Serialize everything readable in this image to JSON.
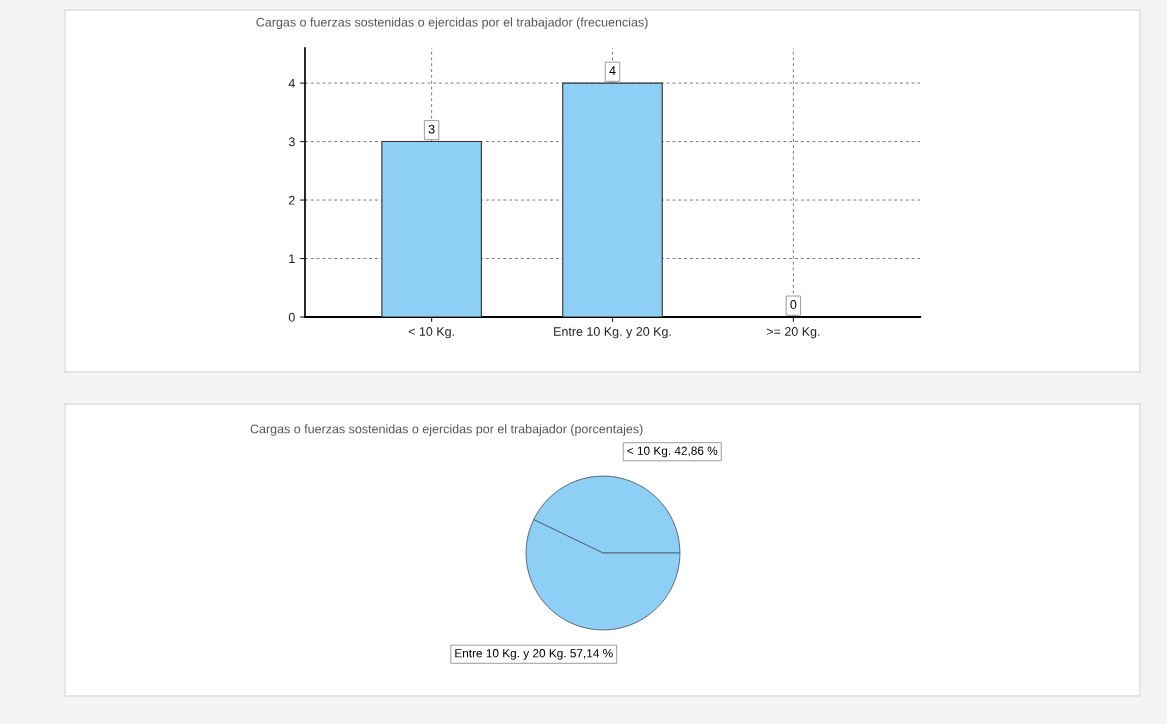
{
  "chart_data": [
    {
      "type": "bar",
      "title": "Cargas o fuerzas sostenidas o ejercidas por el trabajador (frecuencias)",
      "categories": [
        "< 10 Kg.",
        "Entre 10 Kg. y 20 Kg.",
        ">= 20 Kg."
      ],
      "values": [
        3,
        4,
        0
      ],
      "color": "#8ecff5",
      "ylim": [
        0,
        4.6
      ],
      "yticks": [
        0,
        1,
        2,
        3,
        4
      ],
      "grid": true,
      "data_labels": true
    },
    {
      "type": "pie",
      "title": "Cargas o fuerzas sostenidas o ejercidas por el trabajador (porcentajes)",
      "categories": [
        "< 10 Kg.",
        "Entre 10 Kg. y 20 Kg."
      ],
      "values": [
        42.86,
        57.14
      ],
      "value_labels": [
        "42,86 %",
        "57,14 %"
      ],
      "colors": [
        "#8ecff5",
        "#8ecff5"
      ]
    }
  ]
}
